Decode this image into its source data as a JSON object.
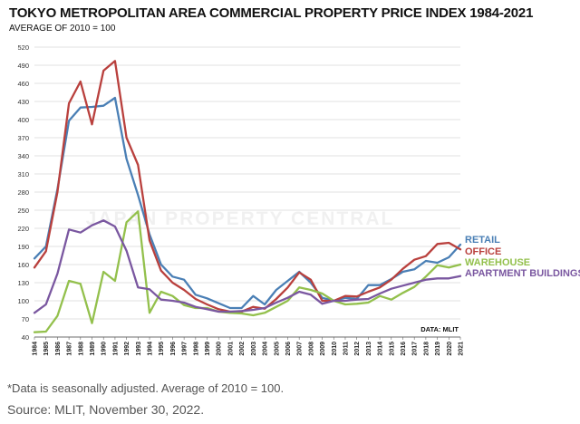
{
  "header": {
    "title": "TOKYO METROPOLITAN AREA COMMERCIAL PROPERTY PRICE INDEX 1984-2021",
    "subtitle": "AVERAGE OF 2010 = 100"
  },
  "footer": {
    "note": "*Data is seasonally adjusted. Average of 2010 = 100.",
    "source": "Source: MLIT, November 30, 2022."
  },
  "watermark": "JAPAN PROPERTY CENTRAL",
  "chart_data": {
    "type": "line",
    "source_label": "DATA: MLIT",
    "ylim": [
      40,
      520
    ],
    "y_ticks": [
      40,
      70,
      100,
      130,
      160,
      190,
      220,
      250,
      280,
      310,
      340,
      370,
      400,
      430,
      460,
      490,
      520
    ],
    "x": [
      "1984",
      "1985",
      "1986",
      "1987",
      "1988",
      "1989",
      "1990",
      "1991",
      "1992",
      "1993",
      "1994",
      "1995",
      "1996",
      "1997",
      "1998",
      "1999",
      "2000",
      "2001",
      "2002",
      "2003",
      "2004",
      "2005",
      "2006",
      "2007",
      "2008",
      "2009",
      "2010",
      "2011",
      "2012",
      "2013",
      "2014",
      "2015",
      "2016",
      "2017",
      "2018",
      "2019",
      "2020",
      "2021"
    ],
    "grid": true,
    "legend_position": "right",
    "series": [
      {
        "name": "RETAIL",
        "color": "#4a7fb5",
        "values": [
          170,
          190,
          285,
          398,
          420,
          421,
          423,
          436,
          335,
          275,
          210,
          160,
          140,
          135,
          110,
          104,
          96,
          88,
          88,
          108,
          94,
          118,
          133,
          148,
          130,
          105,
          100,
          105,
          103,
          126,
          126,
          136,
          148,
          152,
          166,
          163,
          172,
          193
        ]
      },
      {
        "name": "OFFICE",
        "color": "#b9403d",
        "values": [
          155,
          182,
          280,
          427,
          463,
          392,
          481,
          497,
          370,
          325,
          200,
          150,
          130,
          118,
          103,
          94,
          86,
          82,
          82,
          90,
          87,
          103,
          122,
          147,
          135,
          100,
          100,
          108,
          107,
          115,
          122,
          135,
          153,
          168,
          174,
          194,
          196,
          185
        ]
      },
      {
        "name": "WAREHOUSE",
        "color": "#93c04c",
        "values": [
          48,
          49,
          75,
          133,
          128,
          63,
          148,
          133,
          230,
          248,
          80,
          115,
          108,
          93,
          88,
          88,
          82,
          80,
          79,
          76,
          80,
          90,
          100,
          122,
          118,
          112,
          100,
          94,
          95,
          97,
          108,
          102,
          113,
          123,
          140,
          159,
          155,
          160
        ]
      },
      {
        "name": "APARTMENT BUILDINGS",
        "color": "#7a57a0",
        "values": [
          80,
          94,
          145,
          218,
          213,
          225,
          233,
          223,
          183,
          122,
          119,
          102,
          100,
          97,
          90,
          86,
          82,
          82,
          83,
          85,
          88,
          97,
          105,
          115,
          110,
          95,
          100,
          100,
          102,
          103,
          112,
          120,
          125,
          130,
          135,
          137,
          137,
          141
        ]
      }
    ]
  }
}
